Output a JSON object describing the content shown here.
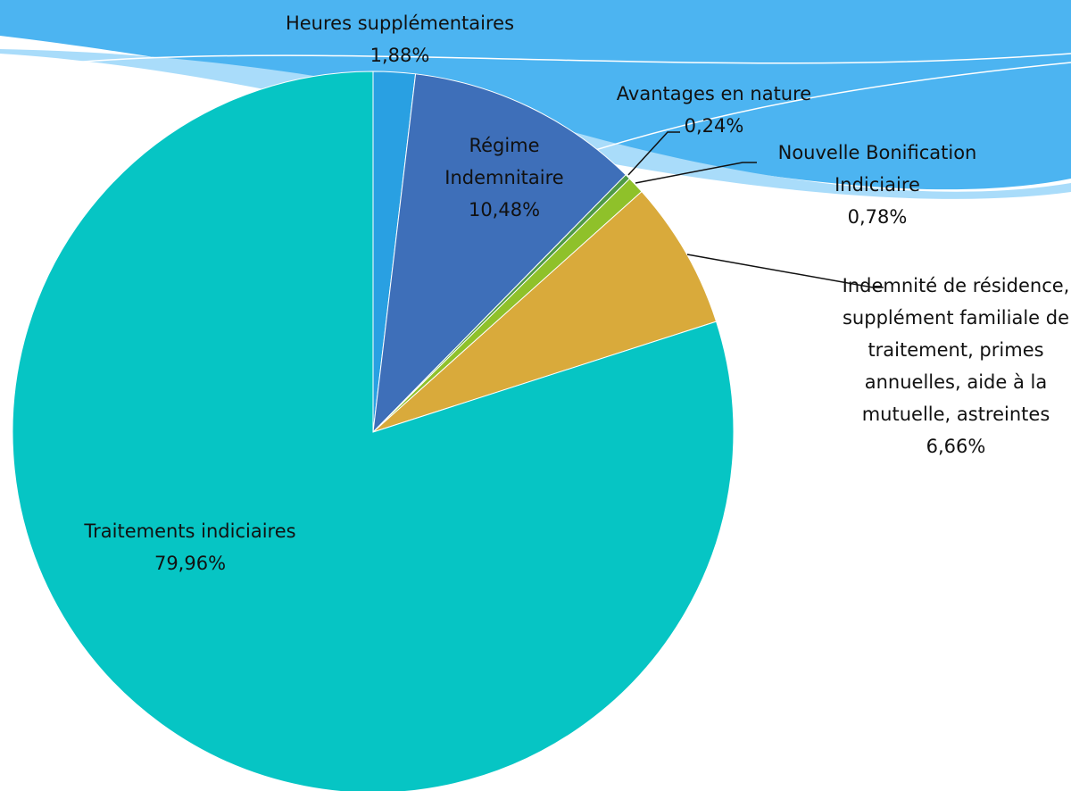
{
  "chart_data": {
    "type": "pie",
    "categories": [
      "Heures supplémentaires",
      "Régime Indemnitaire",
      "Avantages en nature",
      "Nouvelle Bonification Indiciaire",
      "Indemnité de résidence, supplément familiale de traitement, primes annuelles, aide à la mutuelle, astreintes",
      "Traitements indiciaires"
    ],
    "values": [
      1.88,
      10.48,
      0.24,
      0.78,
      6.66,
      79.96
    ],
    "value_labels": [
      "1,88%",
      "10,48%",
      "0,24%",
      "0,78%",
      "6,66%",
      "79,96%"
    ],
    "colors": [
      "#29a0e2",
      "#3e6fb9",
      "#4f9a45",
      "#8fc12a",
      "#d9aa3b",
      "#06c5c4"
    ]
  }
}
